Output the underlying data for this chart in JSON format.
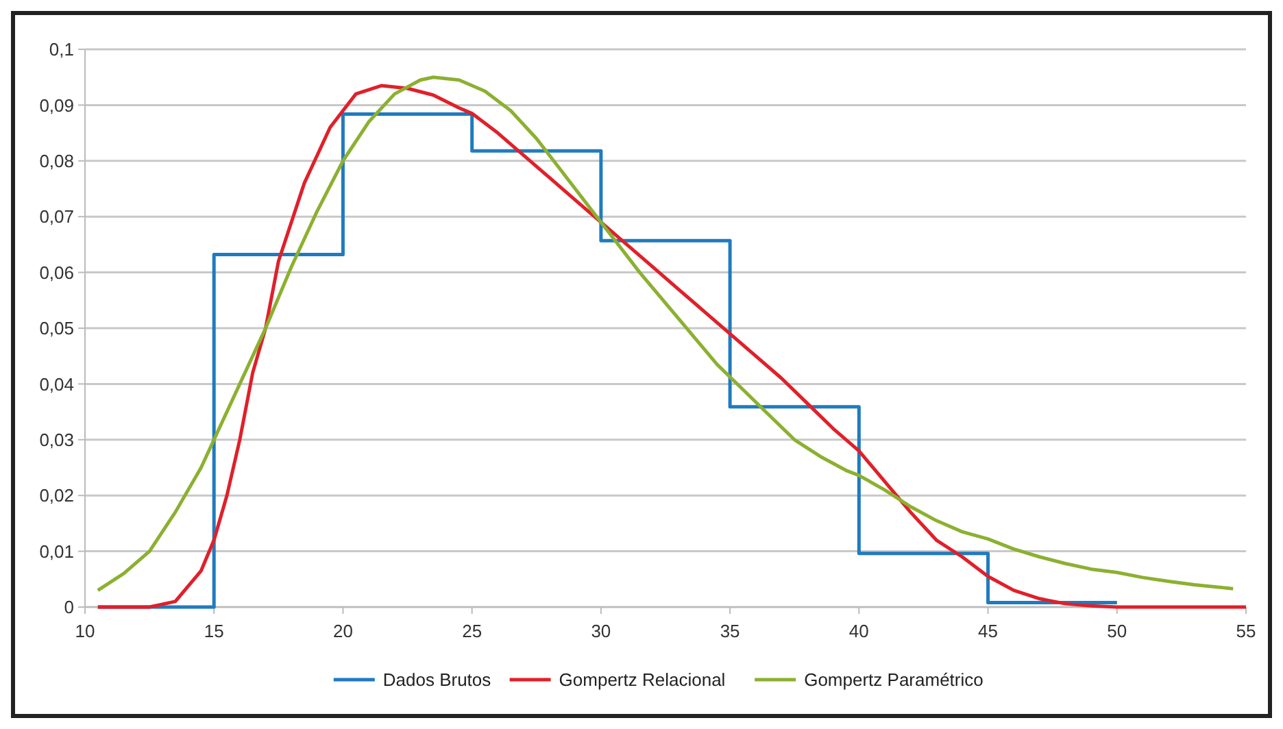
{
  "chart_data": {
    "type": "line",
    "xlim": [
      10,
      55
    ],
    "ylim": [
      0,
      0.1
    ],
    "xticks": [
      10,
      15,
      20,
      25,
      30,
      35,
      40,
      45,
      50,
      55
    ],
    "yticks": [
      {
        "value": 0,
        "label": "0"
      },
      {
        "value": 0.01,
        "label": "0,01"
      },
      {
        "value": 0.02,
        "label": "0,02"
      },
      {
        "value": 0.03,
        "label": "0,03"
      },
      {
        "value": 0.04,
        "label": "0,04"
      },
      {
        "value": 0.05,
        "label": "0,05"
      },
      {
        "value": 0.06,
        "label": "0,06"
      },
      {
        "value": 0.07,
        "label": "0,07"
      },
      {
        "value": 0.08,
        "label": "0,08"
      },
      {
        "value": 0.09,
        "label": "0,09"
      },
      {
        "value": 0.1,
        "label": "0,1"
      }
    ],
    "grid": "y",
    "legend": "bottom",
    "marker": "none",
    "line_style": "solid",
    "series": [
      {
        "name": "Dados Brutos",
        "type": "step",
        "color": "#1f7bbf",
        "x": [
          10.5,
          15,
          20,
          25,
          30,
          35,
          40,
          45,
          50
        ],
        "values": [
          0,
          0.0632,
          0.0884,
          0.0818,
          0.0657,
          0.0359,
          0.0096,
          0.0008,
          0.0008
        ]
      },
      {
        "name": "Gompertz Relacional",
        "color": "#e0202a",
        "x": [
          10.5,
          12.5,
          13.5,
          14.5,
          15,
          15.5,
          16,
          16.5,
          17,
          17.5,
          18.5,
          19.5,
          20,
          20.5,
          21.5,
          22.5,
          23.5,
          24.5,
          25,
          26,
          27,
          28,
          29,
          30,
          31,
          32,
          33,
          34,
          35,
          36,
          37,
          38,
          39,
          40,
          41,
          42,
          43,
          44,
          45,
          46,
          47,
          48,
          49,
          50,
          55
        ],
        "values": [
          0,
          0,
          0.001,
          0.0065,
          0.012,
          0.02,
          0.03,
          0.042,
          0.05,
          0.062,
          0.076,
          0.086,
          0.089,
          0.092,
          0.0935,
          0.093,
          0.0918,
          0.0895,
          0.0885,
          0.085,
          0.081,
          0.077,
          0.073,
          0.069,
          0.065,
          0.061,
          0.057,
          0.053,
          0.049,
          0.045,
          0.041,
          0.0365,
          0.032,
          0.028,
          0.0225,
          0.017,
          0.012,
          0.009,
          0.0055,
          0.003,
          0.0015,
          0.0006,
          0.0002,
          0,
          0
        ]
      },
      {
        "name": "Gompertz Paramétrico",
        "color": "#8cb030",
        "x": [
          10.5,
          11.5,
          12.5,
          13.5,
          14.5,
          15,
          16,
          17,
          18,
          19,
          20,
          21,
          22,
          23,
          23.5,
          24.5,
          25.5,
          26.5,
          27.5,
          28.5,
          29.5,
          30.5,
          31.5,
          32.5,
          33.5,
          34.5,
          35.5,
          36.5,
          37.5,
          38.5,
          39.5,
          40,
          41,
          42,
          43,
          44,
          45,
          46,
          47,
          48,
          49,
          50,
          51,
          52,
          53,
          54.5
        ],
        "values": [
          0.003,
          0.006,
          0.01,
          0.017,
          0.025,
          0.03,
          0.04,
          0.05,
          0.061,
          0.071,
          0.08,
          0.087,
          0.092,
          0.0945,
          0.095,
          0.0945,
          0.0925,
          0.089,
          0.084,
          0.078,
          0.072,
          0.066,
          0.06,
          0.0545,
          0.049,
          0.0435,
          0.039,
          0.0345,
          0.03,
          0.027,
          0.0245,
          0.0236,
          0.021,
          0.018,
          0.0155,
          0.0135,
          0.0122,
          0.0104,
          0.009,
          0.0078,
          0.0068,
          0.0062,
          0.0053,
          0.0046,
          0.004,
          0.0033
        ]
      }
    ]
  }
}
